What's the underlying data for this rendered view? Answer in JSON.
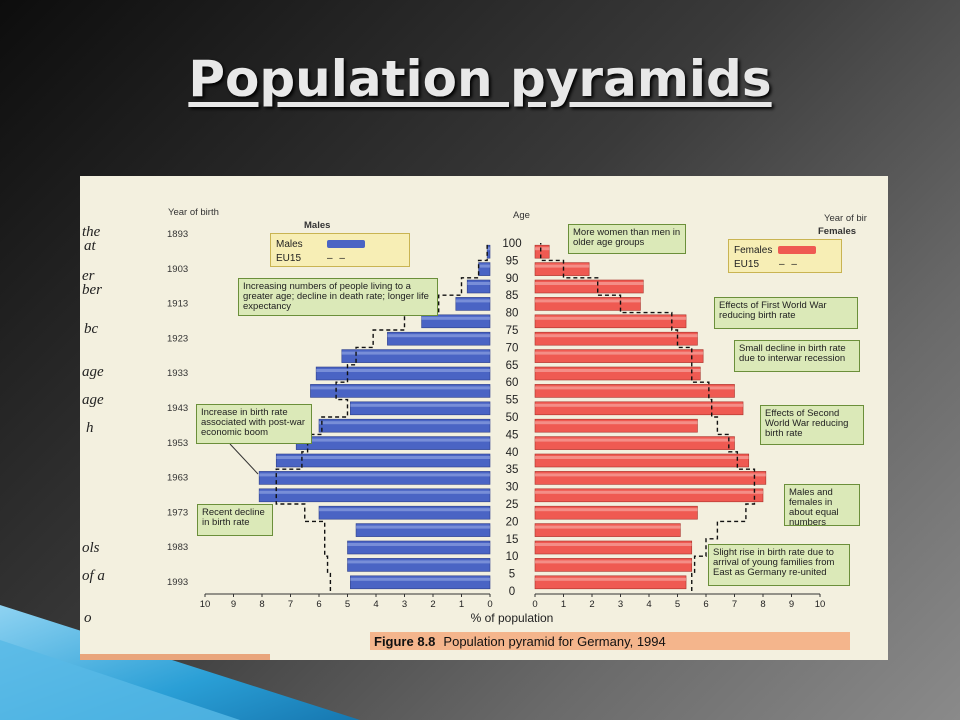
{
  "slide": {
    "title": "Population pyramids"
  },
  "figure": {
    "caption_number": "Figure 8.8",
    "caption_text": "Population pyramid for Germany, 1994",
    "year_of_birth_label_left": "Year of birth",
    "year_of_birth_label_right": "Year of bir",
    "males_heading": "Males",
    "females_heading": "Females",
    "age_heading": "Age",
    "xaxis_label": "% of population",
    "legend_left": {
      "primary": "Males",
      "secondary": "EU15"
    },
    "legend_right": {
      "primary": "Females",
      "secondary": "EU15"
    },
    "page_fragments": [
      "the",
      "at",
      "er",
      "ber",
      "bc",
      "age",
      "age",
      "h",
      "ols",
      "of a",
      "o"
    ],
    "notes": [
      "More women than men in older age groups",
      "Increasing numbers of people living to a greater age; decline in death rate; longer life expectancy",
      "Effects of First World War reducing birth rate",
      "Small decline in birth rate due to interwar recession",
      "Increase in birth rate associated with post-war economic boom",
      "Effects of Second World War reducing birth rate",
      "Males and females in about equal numbers",
      "Recent decline in birth rate",
      "Slight rise in birth rate due to arrival of young families from East as Germany re-united"
    ]
  },
  "colors": {
    "male": "#4a64c4",
    "female": "#ef5a52",
    "note_bg": "#dbe9b8",
    "eu15_line": "#111111"
  },
  "chart_data": {
    "type": "bar",
    "orientation": "horizontal",
    "age_groups": [
      "0",
      "5",
      "10",
      "15",
      "20",
      "25",
      "30",
      "35",
      "40",
      "45",
      "50",
      "55",
      "60",
      "65",
      "70",
      "75",
      "80",
      "85",
      "90",
      "95"
    ],
    "age_ticks": [
      "0",
      "5",
      "10",
      "15",
      "20",
      "25",
      "30",
      "35",
      "40",
      "45",
      "50",
      "55",
      "60",
      "65",
      "70",
      "75",
      "80",
      "85",
      "90",
      "95",
      "100"
    ],
    "birth_years": [
      "1993",
      "1983",
      "1973",
      "1963",
      "1953",
      "1943",
      "1933",
      "1923",
      "1913",
      "1903",
      "1893"
    ],
    "x_ticks_male": [
      "10",
      "9",
      "8",
      "7",
      "6",
      "5",
      "4",
      "3",
      "2",
      "1",
      "0"
    ],
    "x_ticks_female": [
      "0",
      "1",
      "2",
      "3",
      "4",
      "5",
      "6",
      "7",
      "8",
      "9",
      "10"
    ],
    "xlim": [
      0,
      10
    ],
    "series": [
      {
        "name": "Males",
        "side": "left",
        "values": [
          4.9,
          5.0,
          5.0,
          4.7,
          6.0,
          8.1,
          8.1,
          7.5,
          6.8,
          6.0,
          4.9,
          6.3,
          6.1,
          5.2,
          3.6,
          2.4,
          1.2,
          0.8,
          0.4,
          0.1
        ]
      },
      {
        "name": "Females",
        "side": "right",
        "values": [
          5.3,
          5.5,
          5.5,
          5.1,
          5.7,
          8.0,
          8.1,
          7.5,
          7.0,
          5.7,
          7.3,
          7.0,
          5.8,
          5.9,
          5.7,
          5.3,
          3.7,
          3.8,
          1.9,
          0.5
        ]
      },
      {
        "name": "EU15 (Males)",
        "side": "left",
        "style": "dashed-outline",
        "values": [
          5.6,
          5.7,
          5.8,
          5.8,
          6.5,
          7.5,
          7.5,
          6.6,
          6.4,
          5.9,
          5.0,
          5.4,
          5.0,
          4.7,
          4.1,
          3.0,
          1.8,
          1.0,
          0.4,
          0.1
        ]
      },
      {
        "name": "EU15 (Females)",
        "side": "right",
        "style": "dashed-outline",
        "values": [
          5.5,
          5.6,
          6.0,
          6.4,
          7.4,
          7.7,
          7.7,
          7.1,
          6.8,
          6.4,
          6.2,
          6.1,
          5.5,
          5.5,
          5.0,
          4.8,
          3.0,
          2.2,
          1.0,
          0.2
        ]
      }
    ]
  }
}
